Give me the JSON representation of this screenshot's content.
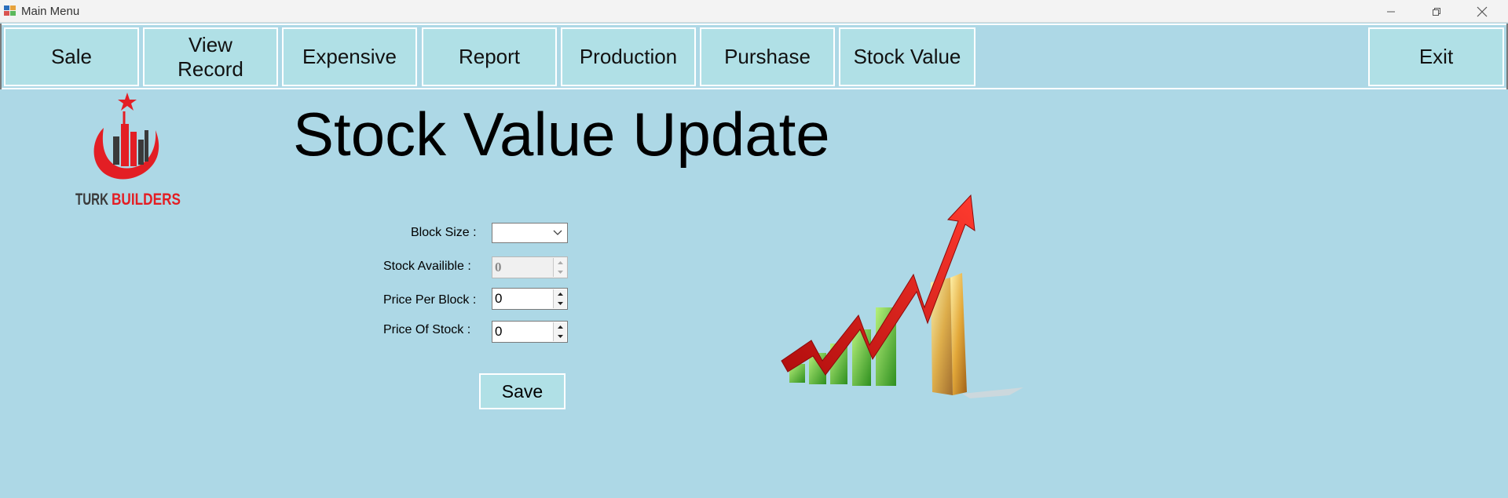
{
  "window": {
    "title": "Main Menu",
    "icons": [
      "app-icon",
      "minimize-icon",
      "restore-icon",
      "close-icon"
    ]
  },
  "menu": {
    "items": [
      {
        "label": "Sale"
      },
      {
        "label": "View\nRecord"
      },
      {
        "label": "Expensive"
      },
      {
        "label": "Report"
      },
      {
        "label": "Production"
      },
      {
        "label": "Purshase"
      },
      {
        "label": "Stock Value"
      }
    ],
    "exit_label": "Exit"
  },
  "logo": {
    "text_left": "TURK",
    "text_right": "BUILDERS",
    "colors": {
      "red": "#e31e24",
      "dark": "#3a3a3a"
    }
  },
  "page": {
    "title": "Stock Value Update"
  },
  "form": {
    "block_size": {
      "label": "Block Size :",
      "value": ""
    },
    "stock_available": {
      "label": "Stock Availible :",
      "value": "0"
    },
    "price_per_block": {
      "label": "Price Per Block :",
      "value": "0"
    },
    "price_of_stock": {
      "label": "Price Of Stock :",
      "value": "0"
    },
    "save_label": "Save"
  },
  "colors": {
    "background": "#add8e6",
    "button": "#b0e0e6"
  }
}
